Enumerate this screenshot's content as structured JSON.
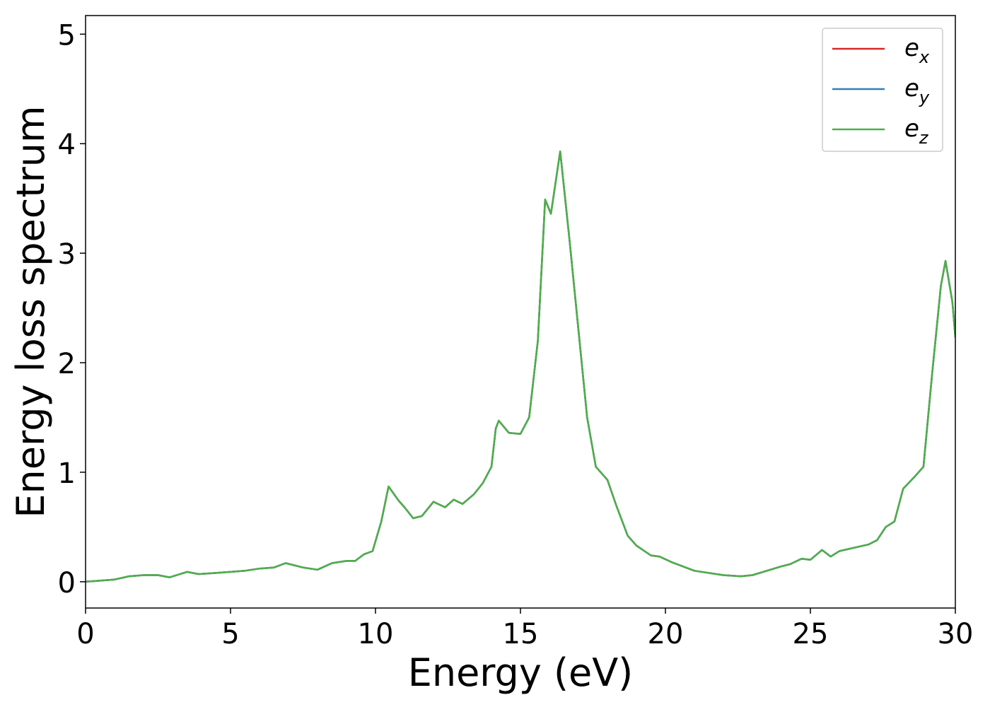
{
  "chart_data": {
    "type": "line",
    "xlabel": "Energy (eV)",
    "ylabel": "Energy loss spectrum",
    "x": [
      0,
      1,
      1.5,
      2,
      2.5,
      2.9,
      3.5,
      3.9,
      4.5,
      5,
      5.5,
      6,
      6.5,
      6.9,
      7.5,
      8.0,
      8.5,
      9.0,
      9.3,
      9.6,
      9.9,
      10.2,
      10.45,
      10.8,
      11.0,
      11.3,
      11.6,
      12.0,
      12.4,
      12.7,
      13.0,
      13.4,
      13.7,
      14.0,
      14.15,
      14.25,
      14.6,
      15.0,
      15.3,
      15.6,
      15.85,
      16.05,
      16.37,
      16.7,
      17.0,
      17.3,
      17.6,
      18.0,
      18.3,
      18.7,
      19.0,
      19.5,
      19.8,
      20.2,
      20.5,
      21.0,
      22.0,
      22.6,
      23.0,
      23.5,
      24.0,
      24.3,
      24.7,
      25.0,
      25.4,
      25.7,
      26.0,
      26.5,
      27.0,
      27.3,
      27.6,
      27.9,
      28.2,
      28.6,
      28.9,
      29.2,
      29.5,
      29.66,
      29.9,
      30.0
    ],
    "series": [
      {
        "name": "e_x",
        "color": "#d62728",
        "values": [
          0.0,
          0.02,
          0.05,
          0.06,
          0.06,
          0.04,
          0.09,
          0.07,
          0.08,
          0.09,
          0.1,
          0.12,
          0.13,
          0.17,
          0.13,
          0.11,
          0.17,
          0.19,
          0.19,
          0.25,
          0.28,
          0.55,
          0.87,
          0.74,
          0.68,
          0.58,
          0.6,
          0.73,
          0.68,
          0.75,
          0.71,
          0.8,
          0.9,
          1.05,
          1.4,
          1.47,
          1.36,
          1.35,
          1.5,
          2.2,
          3.49,
          3.36,
          3.93,
          3.1,
          2.3,
          1.5,
          1.05,
          0.93,
          0.7,
          0.42,
          0.33,
          0.24,
          0.23,
          0.18,
          0.15,
          0.1,
          0.06,
          0.05,
          0.06,
          0.1,
          0.14,
          0.16,
          0.21,
          0.2,
          0.29,
          0.23,
          0.28,
          0.31,
          0.34,
          0.38,
          0.5,
          0.55,
          0.85,
          0.96,
          1.05,
          1.9,
          2.7,
          2.93,
          2.55,
          2.23
        ]
      },
      {
        "name": "e_y",
        "color": "#377eb8",
        "values": [
          0.0,
          0.02,
          0.05,
          0.06,
          0.06,
          0.04,
          0.09,
          0.07,
          0.08,
          0.09,
          0.1,
          0.12,
          0.13,
          0.17,
          0.13,
          0.11,
          0.17,
          0.19,
          0.19,
          0.25,
          0.28,
          0.55,
          0.87,
          0.74,
          0.68,
          0.58,
          0.6,
          0.73,
          0.68,
          0.75,
          0.71,
          0.8,
          0.9,
          1.05,
          1.4,
          1.47,
          1.36,
          1.35,
          1.5,
          2.2,
          3.49,
          3.36,
          3.93,
          3.1,
          2.3,
          1.5,
          1.05,
          0.93,
          0.7,
          0.42,
          0.33,
          0.24,
          0.23,
          0.18,
          0.15,
          0.1,
          0.06,
          0.05,
          0.06,
          0.1,
          0.14,
          0.16,
          0.21,
          0.2,
          0.29,
          0.23,
          0.28,
          0.31,
          0.34,
          0.38,
          0.5,
          0.55,
          0.85,
          0.96,
          1.05,
          1.9,
          2.7,
          2.93,
          2.55,
          2.23
        ]
      },
      {
        "name": "e_z",
        "color": "#4daf4a",
        "values": [
          0.0,
          0.02,
          0.05,
          0.06,
          0.06,
          0.04,
          0.09,
          0.07,
          0.08,
          0.09,
          0.1,
          0.12,
          0.13,
          0.17,
          0.13,
          0.11,
          0.17,
          0.19,
          0.19,
          0.25,
          0.28,
          0.55,
          0.87,
          0.74,
          0.68,
          0.58,
          0.6,
          0.73,
          0.68,
          0.75,
          0.71,
          0.8,
          0.9,
          1.05,
          1.4,
          1.47,
          1.36,
          1.35,
          1.5,
          2.2,
          3.49,
          3.36,
          3.93,
          3.1,
          2.3,
          1.5,
          1.05,
          0.93,
          0.7,
          0.42,
          0.33,
          0.24,
          0.23,
          0.18,
          0.15,
          0.1,
          0.06,
          0.05,
          0.06,
          0.1,
          0.14,
          0.16,
          0.21,
          0.2,
          0.29,
          0.23,
          0.28,
          0.31,
          0.34,
          0.38,
          0.5,
          0.55,
          0.85,
          0.96,
          1.05,
          1.9,
          2.7,
          2.93,
          2.55,
          2.23
        ]
      }
    ],
    "xlim": [
      0,
      30
    ],
    "xticks": [
      0,
      5,
      10,
      15,
      20,
      25,
      30
    ],
    "ylim": [
      -0.24,
      5.17
    ],
    "yticks": [
      0,
      1,
      2,
      3,
      4,
      5
    ],
    "legend": "upper right",
    "grid": false
  }
}
